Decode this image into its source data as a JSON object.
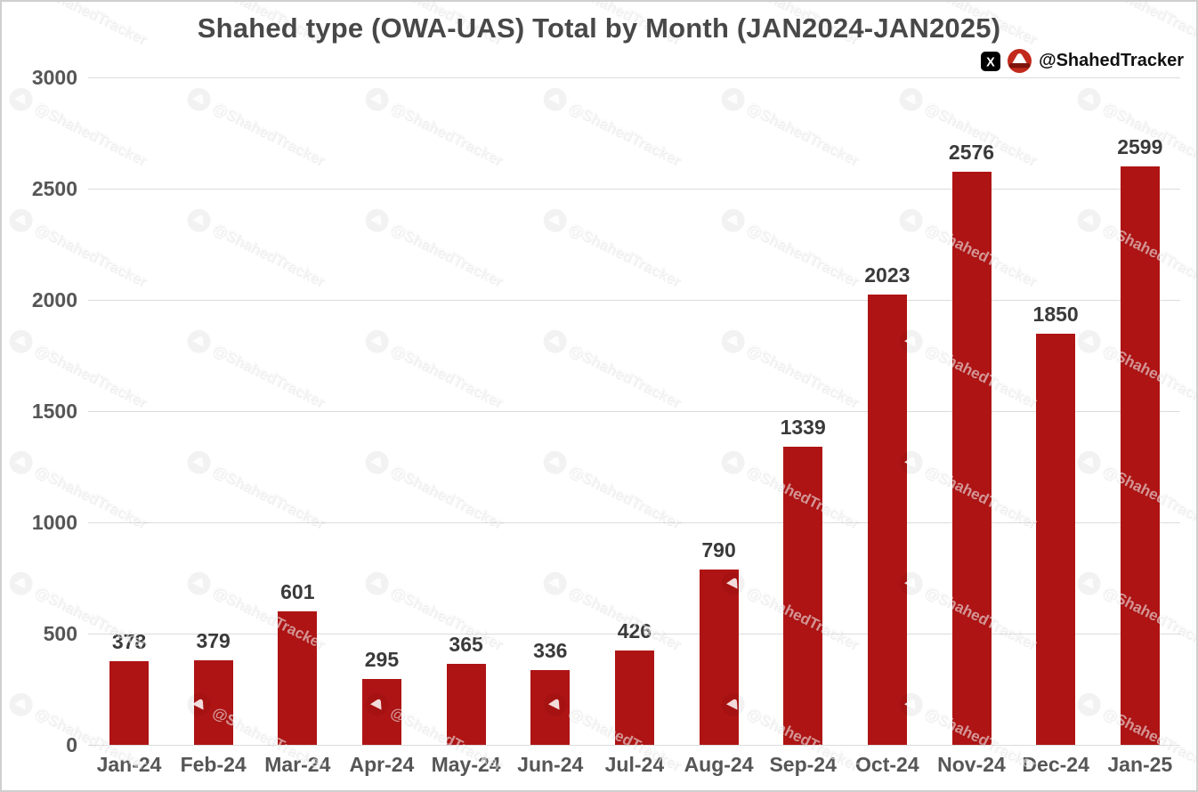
{
  "attribution": {
    "handle": "@ShahedTracker",
    "x_icon": "x-logo",
    "tracker_icon": "shahed-tracker-logo"
  },
  "watermark": {
    "text": "@ShahedTracker"
  },
  "colors": {
    "bar": "#AF1414",
    "gridline": "#dcdcdc",
    "title_text": "#484848",
    "tick_text": "#565656",
    "value_text": "#3a3a3a",
    "logo_red": "#C22A1C",
    "logo_band": "#7E150D",
    "x_logo_bg": "#000000"
  },
  "chart_data": {
    "type": "bar",
    "title": "Shahed type (OWA-UAS) Total by Month (JAN2024-JAN2025)",
    "categories": [
      "Jan-24",
      "Feb-24",
      "Mar-24",
      "Apr-24",
      "May-24",
      "Jun-24",
      "Jul-24",
      "Aug-24",
      "Sep-24",
      "Oct-24",
      "Nov-24",
      "Dec-24",
      "Jan-25"
    ],
    "values": [
      378,
      379,
      601,
      295,
      365,
      336,
      426,
      790,
      1339,
      2023,
      2576,
      1850,
      2599
    ],
    "xlabel": "",
    "ylabel": "",
    "ylim": [
      0,
      3000
    ],
    "yticks": [
      0,
      500,
      1000,
      1500,
      2000,
      2500,
      3000
    ],
    "grid": true,
    "legend": "none",
    "data_labels": true
  }
}
